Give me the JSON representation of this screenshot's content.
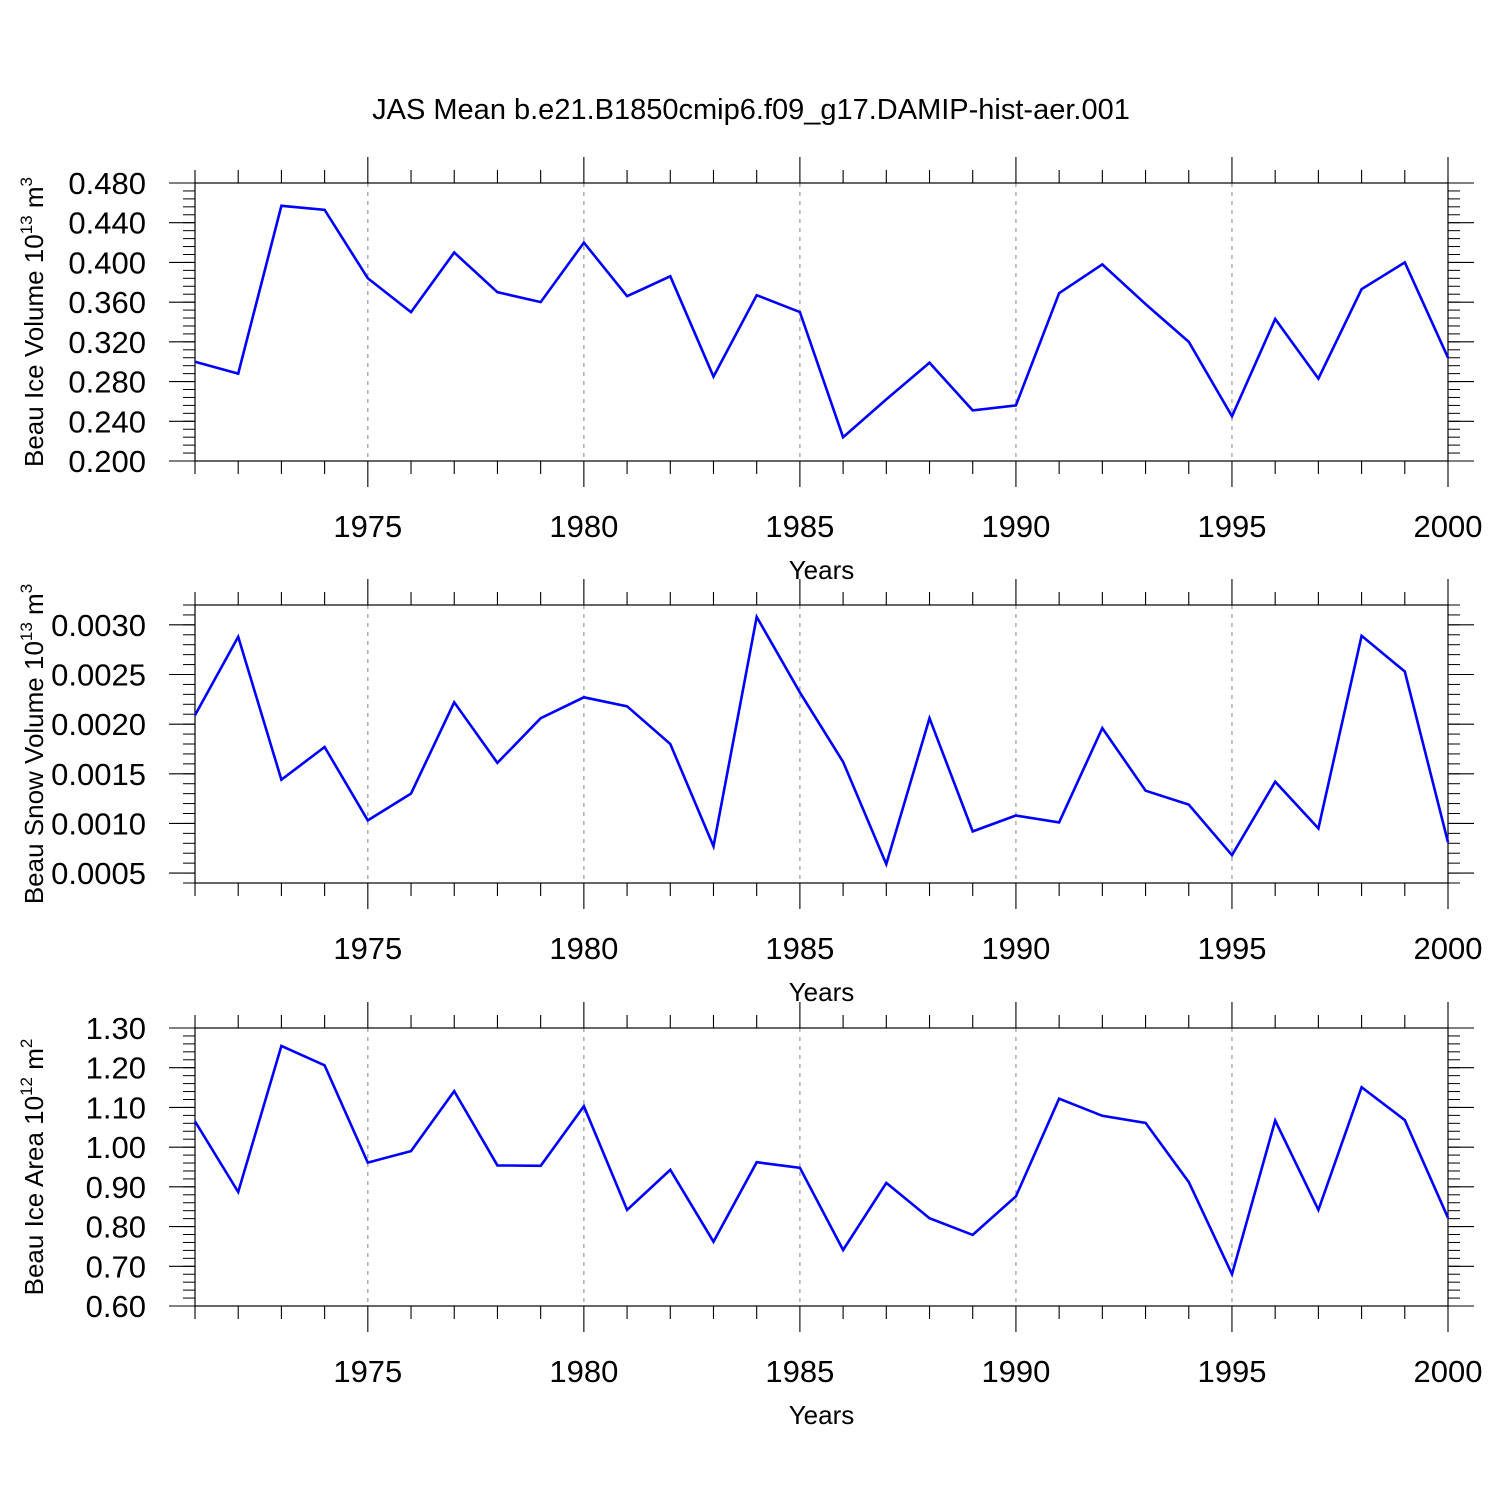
{
  "title": "JAS Mean b.e21.B1850cmip6.f09_g17.DAMIP-hist-aer.001",
  "line_color": "#0000ff",
  "chart_data": [
    {
      "type": "line",
      "xlabel": "Years",
      "ylabel": {
        "main": "Beau Ice Volume 10",
        "sup": "13",
        "unit": " m",
        "unit_sup": "3"
      },
      "xlim": [
        1971,
        2000
      ],
      "ylim": [
        0.2,
        0.48
      ],
      "x_ticks": [
        1975,
        1980,
        1985,
        1990,
        1995,
        2000
      ],
      "y_ticks": [
        0.2,
        0.24,
        0.28,
        0.32,
        0.36,
        0.4,
        0.44,
        0.48
      ],
      "y_tick_labels": [
        "0.200",
        "0.240",
        "0.280",
        "0.320",
        "0.360",
        "0.400",
        "0.440",
        "0.480"
      ],
      "y_minor_step": 0.008,
      "grid": "vertical dashed at labeled years",
      "x": [
        1971,
        1972,
        1973,
        1974,
        1975,
        1976,
        1977,
        1978,
        1979,
        1980,
        1981,
        1982,
        1983,
        1984,
        1985,
        1986,
        1987,
        1988,
        1989,
        1990,
        1991,
        1992,
        1993,
        1994,
        1995,
        1996,
        1997,
        1998,
        1999,
        2000
      ],
      "y": [
        0.3,
        0.288,
        0.457,
        0.453,
        0.384,
        0.35,
        0.41,
        0.37,
        0.36,
        0.42,
        0.366,
        0.386,
        0.285,
        0.367,
        0.35,
        0.224,
        0.262,
        0.299,
        0.251,
        0.256,
        0.369,
        0.398,
        0.358,
        0.32,
        0.245,
        0.343,
        0.283,
        0.373,
        0.4,
        0.304
      ]
    },
    {
      "type": "line",
      "xlabel": "Years",
      "ylabel": {
        "main": "Beau Snow Volume 10",
        "sup": "13",
        "unit": " m",
        "unit_sup": "3"
      },
      "xlim": [
        1971,
        2000
      ],
      "ylim": [
        0.0004,
        0.0032
      ],
      "x_ticks": [
        1975,
        1980,
        1985,
        1990,
        1995,
        2000
      ],
      "y_ticks": [
        0.0005,
        0.001,
        0.0015,
        0.002,
        0.0025,
        0.003
      ],
      "y_tick_labels": [
        "0.0005",
        "0.0010",
        "0.0015",
        "0.0020",
        "0.0025",
        "0.0030"
      ],
      "y_minor_step": 0.0001,
      "grid": "vertical dashed at labeled years",
      "x": [
        1971,
        1972,
        1973,
        1974,
        1975,
        1976,
        1977,
        1978,
        1979,
        1980,
        1981,
        1982,
        1983,
        1984,
        1985,
        1986,
        1987,
        1988,
        1989,
        1990,
        1991,
        1992,
        1993,
        1994,
        1995,
        1996,
        1997,
        1998,
        1999,
        2000
      ],
      "y": [
        0.00209,
        0.00288,
        0.00144,
        0.00177,
        0.00103,
        0.0013,
        0.00222,
        0.00161,
        0.00206,
        0.00227,
        0.00218,
        0.0018,
        0.00077,
        0.00308,
        0.00232,
        0.00162,
        0.00059,
        0.00206,
        0.00092,
        0.00108,
        0.00101,
        0.00196,
        0.00133,
        0.00119,
        0.00068,
        0.00142,
        0.00095,
        0.00289,
        0.00253,
        0.00081
      ]
    },
    {
      "type": "line",
      "xlabel": "Years",
      "ylabel": {
        "main": "Beau Ice Area 10",
        "sup": "12",
        "unit": " m",
        "unit_sup": "2"
      },
      "xlim": [
        1971,
        2000
      ],
      "ylim": [
        0.6,
        1.3
      ],
      "x_ticks": [
        1975,
        1980,
        1985,
        1990,
        1995,
        2000
      ],
      "y_ticks": [
        0.6,
        0.7,
        0.8,
        0.9,
        1.0,
        1.1,
        1.2,
        1.3
      ],
      "y_tick_labels": [
        "0.60",
        "0.70",
        "0.80",
        "0.90",
        "1.00",
        "1.10",
        "1.20",
        "1.30"
      ],
      "y_minor_step": 0.02,
      "grid": "vertical dashed at labeled years",
      "x": [
        1971,
        1972,
        1973,
        1974,
        1975,
        1976,
        1977,
        1978,
        1979,
        1980,
        1981,
        1982,
        1983,
        1984,
        1985,
        1986,
        1987,
        1988,
        1989,
        1990,
        1991,
        1992,
        1993,
        1994,
        1995,
        1996,
        1997,
        1998,
        1999,
        2000
      ],
      "y": [
        1.065,
        0.887,
        1.255,
        1.206,
        0.961,
        0.99,
        1.141,
        0.954,
        0.953,
        1.103,
        0.842,
        0.943,
        0.762,
        0.962,
        0.948,
        0.741,
        0.91,
        0.821,
        0.779,
        0.876,
        1.122,
        1.079,
        1.061,
        0.912,
        0.68,
        1.067,
        0.842,
        1.151,
        1.068,
        0.822
      ]
    }
  ]
}
